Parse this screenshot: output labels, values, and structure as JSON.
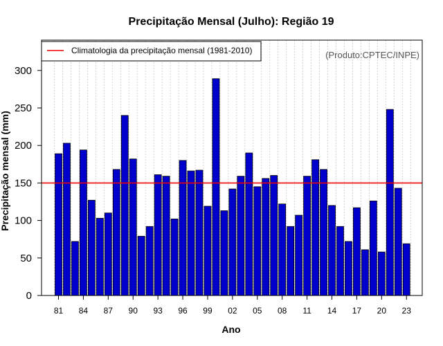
{
  "chart_data": {
    "type": "bar",
    "title": "Precipitação Mensal (Julho): Região 19",
    "xlabel": "Ano",
    "ylabel": "Precipitação mensal (mm)",
    "ylim": [
      0,
      330
    ],
    "yticks": [
      0,
      50,
      100,
      150,
      200,
      250,
      300
    ],
    "categories": [
      "81",
      "82",
      "83",
      "84",
      "85",
      "86",
      "87",
      "88",
      "89",
      "90",
      "91",
      "92",
      "93",
      "94",
      "95",
      "96",
      "97",
      "98",
      "99",
      "00",
      "01",
      "02",
      "03",
      "04",
      "05",
      "06",
      "07",
      "08",
      "09",
      "10",
      "11",
      "12",
      "13",
      "14",
      "15",
      "16",
      "17",
      "18",
      "19",
      "20",
      "21",
      "22",
      "23"
    ],
    "xtick_labels": [
      "81",
      "84",
      "87",
      "90",
      "93",
      "96",
      "99",
      "02",
      "05",
      "08",
      "11",
      "14",
      "17",
      "20",
      "23"
    ],
    "values": [
      189,
      203,
      72,
      194,
      127,
      103,
      110,
      168,
      240,
      182,
      79,
      92,
      161,
      159,
      102,
      180,
      166,
      167,
      119,
      289,
      113,
      142,
      159,
      190,
      145,
      156,
      160,
      122,
      92,
      107,
      159,
      181,
      168,
      120,
      92,
      72,
      117,
      61,
      126,
      58,
      248,
      143,
      69
    ],
    "reference_line": {
      "value": 150,
      "label": "Climatologia da precipitação mensal (1981-2010)",
      "color": "#ee0000"
    },
    "bar_color": "#0000cc",
    "grid": true,
    "legend_position": "top-left",
    "credit": "(Produto:CPTEC/INPE)"
  }
}
